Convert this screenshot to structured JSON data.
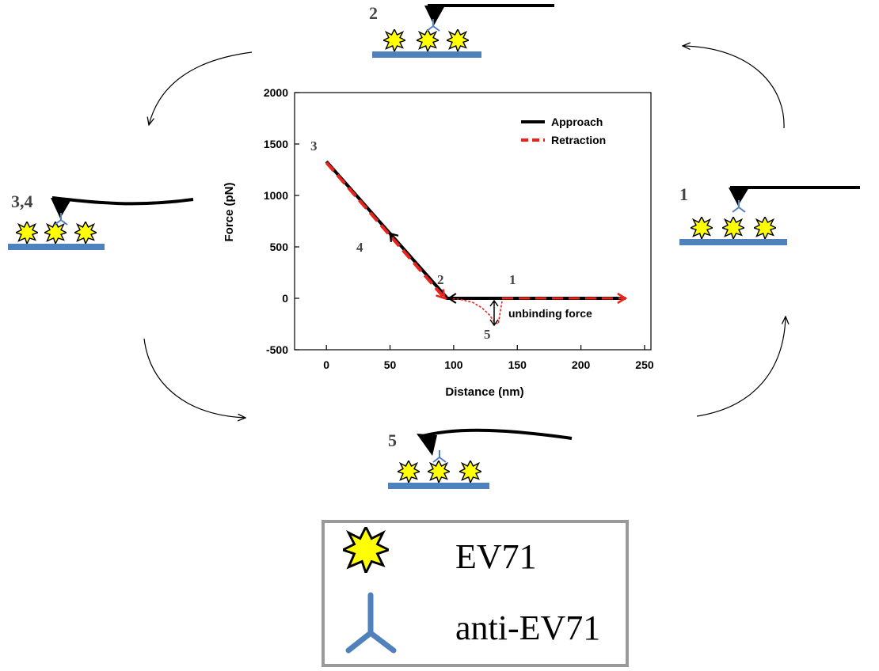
{
  "chart_data": {
    "type": "line",
    "xlabel": "Distance (nm)",
    "ylabel": "Force (pN)",
    "xlim": [
      -25,
      255
    ],
    "ylim": [
      -500,
      2000
    ],
    "xticks": [
      0,
      50,
      100,
      150,
      200,
      250
    ],
    "yticks": [
      -500,
      0,
      500,
      1000,
      1500,
      2000
    ],
    "legend_position": "top-right",
    "series": [
      {
        "name": "Approach",
        "style": "solid",
        "color": "#000000",
        "x": [
          235,
          95,
          0
        ],
        "y": [
          0,
          0,
          1330
        ]
      },
      {
        "name": "Retraction",
        "style": "dashed",
        "color": "#e8241c",
        "x": [
          0,
          93,
          105,
          115,
          122,
          128,
          132,
          135,
          138,
          150,
          235
        ],
        "y": [
          1320,
          0,
          -10,
          -40,
          -90,
          -160,
          -230,
          -250,
          -30,
          -5,
          0
        ]
      }
    ],
    "point_labels": [
      "1",
      "2",
      "3",
      "4",
      "5"
    ],
    "annotation": "unbinding force"
  },
  "stages": [
    {
      "label": "1"
    },
    {
      "label": "2"
    },
    {
      "label": "3,4"
    },
    {
      "label": "5"
    }
  ],
  "legend": {
    "virus_label": "EV71",
    "antibody_label": "anti-EV71"
  },
  "colors": {
    "virus_fill": "#ffff00",
    "substrate": "#4f81bd",
    "antibody": "#4f81bd",
    "retraction": "#e8241c"
  }
}
